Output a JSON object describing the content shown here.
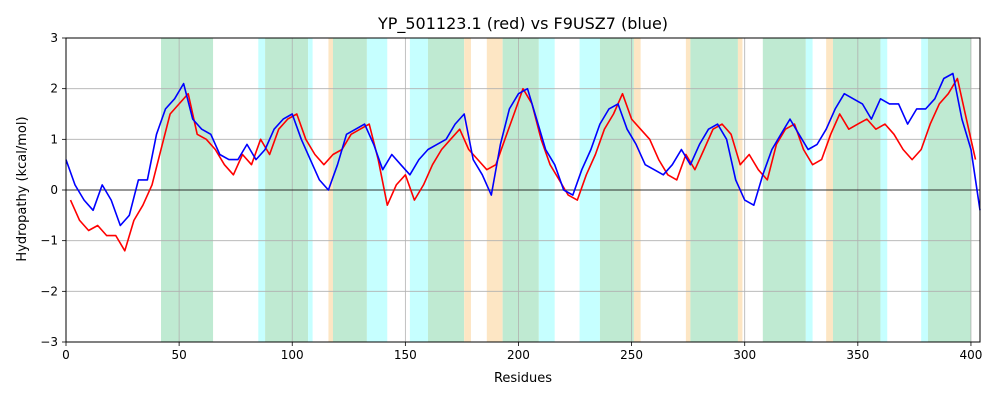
{
  "chart_data": {
    "type": "line",
    "title": "YP_501123.1 (red) vs F9USZ7 (blue)",
    "xlabel": "Residues",
    "ylabel": "Hydropathy (kcal/mol)",
    "xlim": [
      0,
      404
    ],
    "ylim": [
      -3,
      3
    ],
    "x_ticks": [
      0,
      50,
      100,
      150,
      200,
      250,
      300,
      350,
      400
    ],
    "y_ticks": [
      -3,
      -2,
      -1,
      0,
      1,
      2,
      3
    ],
    "grid": true,
    "zero_line": true,
    "band_colors": {
      "green": "#bfead2",
      "cyan": "#c6ffff",
      "orange": "#fde6c4"
    },
    "regions": [
      {
        "type": "green",
        "start": 42,
        "end": 65
      },
      {
        "type": "cyan",
        "start": 85,
        "end": 88
      },
      {
        "type": "green",
        "start": 88,
        "end": 107
      },
      {
        "type": "cyan",
        "start": 107,
        "end": 109
      },
      {
        "type": "orange",
        "start": 116,
        "end": 118
      },
      {
        "type": "green",
        "start": 118,
        "end": 133
      },
      {
        "type": "cyan",
        "start": 133,
        "end": 142
      },
      {
        "type": "cyan",
        "start": 152,
        "end": 160
      },
      {
        "type": "green",
        "start": 160,
        "end": 176
      },
      {
        "type": "orange",
        "start": 176,
        "end": 179
      },
      {
        "type": "orange",
        "start": 186,
        "end": 193
      },
      {
        "type": "green",
        "start": 193,
        "end": 209
      },
      {
        "type": "cyan",
        "start": 209,
        "end": 216
      },
      {
        "type": "cyan",
        "start": 227,
        "end": 236
      },
      {
        "type": "green",
        "start": 236,
        "end": 251
      },
      {
        "type": "orange",
        "start": 251,
        "end": 254
      },
      {
        "type": "orange",
        "start": 274,
        "end": 276
      },
      {
        "type": "green",
        "start": 276,
        "end": 297
      },
      {
        "type": "orange",
        "start": 297,
        "end": 299
      },
      {
        "type": "green",
        "start": 308,
        "end": 327
      },
      {
        "type": "cyan",
        "start": 327,
        "end": 330
      },
      {
        "type": "orange",
        "start": 336,
        "end": 339
      },
      {
        "type": "green",
        "start": 339,
        "end": 360
      },
      {
        "type": "cyan",
        "start": 360,
        "end": 363
      },
      {
        "type": "cyan",
        "start": 378,
        "end": 381
      },
      {
        "type": "green",
        "start": 381,
        "end": 400
      }
    ],
    "series": [
      {
        "color": "#ff0000",
        "x": [
          2,
          6,
          10,
          14,
          18,
          22,
          26,
          30,
          34,
          38,
          42,
          46,
          50,
          54,
          58,
          62,
          66,
          70,
          74,
          78,
          82,
          86,
          90,
          94,
          98,
          102,
          106,
          110,
          114,
          118,
          122,
          126,
          130,
          134,
          138,
          142,
          146,
          150,
          154,
          158,
          162,
          166,
          170,
          174,
          178,
          182,
          186,
          190,
          194,
          198,
          202,
          206,
          210,
          214,
          218,
          222,
          226,
          230,
          234,
          238,
          242,
          246,
          250,
          254,
          258,
          262,
          266,
          270,
          274,
          278,
          282,
          286,
          290,
          294,
          298,
          302,
          306,
          310,
          314,
          318,
          322,
          326,
          330,
          334,
          338,
          342,
          346,
          350,
          354,
          358,
          362,
          366,
          370,
          374,
          378,
          382,
          386,
          390,
          394,
          398,
          402
        ],
        "y": [
          -0.2,
          -0.6,
          -0.8,
          -0.7,
          -0.9,
          -0.9,
          -1.2,
          -0.6,
          -0.3,
          0.1,
          0.8,
          1.5,
          1.7,
          1.9,
          1.1,
          1.0,
          0.8,
          0.5,
          0.3,
          0.7,
          0.5,
          1.0,
          0.7,
          1.2,
          1.4,
          1.5,
          1.0,
          0.7,
          0.5,
          0.7,
          0.8,
          1.1,
          1.2,
          1.3,
          0.6,
          -0.3,
          0.1,
          0.3,
          -0.2,
          0.1,
          0.5,
          0.8,
          1.0,
          1.2,
          0.8,
          0.6,
          0.4,
          0.5,
          1.0,
          1.5,
          2.0,
          1.7,
          1.0,
          0.5,
          0.2,
          -0.1,
          -0.2,
          0.3,
          0.7,
          1.2,
          1.5,
          1.9,
          1.4,
          1.2,
          1.0,
          0.6,
          0.3,
          0.2,
          0.7,
          0.4,
          0.8,
          1.2,
          1.3,
          1.1,
          0.5,
          0.7,
          0.4,
          0.2,
          0.9,
          1.2,
          1.3,
          0.8,
          0.5,
          0.6,
          1.1,
          1.5,
          1.2,
          1.3,
          1.4,
          1.2,
          1.3,
          1.1,
          0.8,
          0.6,
          0.8,
          1.3,
          1.7,
          1.9,
          2.2,
          1.4,
          0.6
        ]
      },
      {
        "color": "#0000ff",
        "x": [
          0,
          4,
          8,
          12,
          16,
          20,
          24,
          28,
          32,
          36,
          40,
          44,
          48,
          52,
          56,
          60,
          64,
          68,
          72,
          76,
          80,
          84,
          88,
          92,
          96,
          100,
          104,
          108,
          112,
          116,
          120,
          124,
          128,
          132,
          136,
          140,
          144,
          148,
          152,
          156,
          160,
          164,
          168,
          172,
          176,
          180,
          184,
          188,
          192,
          196,
          200,
          204,
          208,
          212,
          216,
          220,
          224,
          228,
          232,
          236,
          240,
          244,
          248,
          252,
          256,
          260,
          264,
          268,
          272,
          276,
          280,
          284,
          288,
          292,
          296,
          300,
          304,
          308,
          312,
          316,
          320,
          324,
          328,
          332,
          336,
          340,
          344,
          348,
          352,
          356,
          360,
          364,
          368,
          372,
          376,
          380,
          384,
          388,
          392,
          396,
          400,
          404
        ],
        "y": [
          0.6,
          0.1,
          -0.2,
          -0.4,
          0.1,
          -0.2,
          -0.7,
          -0.5,
          0.2,
          0.2,
          1.1,
          1.6,
          1.8,
          2.1,
          1.4,
          1.2,
          1.1,
          0.7,
          0.6,
          0.6,
          0.9,
          0.6,
          0.8,
          1.2,
          1.4,
          1.5,
          1.0,
          0.6,
          0.2,
          0.0,
          0.5,
          1.1,
          1.2,
          1.3,
          0.9,
          0.4,
          0.7,
          0.5,
          0.3,
          0.6,
          0.8,
          0.9,
          1.0,
          1.3,
          1.5,
          0.6,
          0.3,
          -0.1,
          0.9,
          1.6,
          1.9,
          2.0,
          1.4,
          0.8,
          0.5,
          0.0,
          -0.1,
          0.4,
          0.8,
          1.3,
          1.6,
          1.7,
          1.2,
          0.9,
          0.5,
          0.4,
          0.3,
          0.5,
          0.8,
          0.5,
          0.9,
          1.2,
          1.3,
          1.0,
          0.2,
          -0.2,
          -0.3,
          0.3,
          0.8,
          1.1,
          1.4,
          1.1,
          0.8,
          0.9,
          1.2,
          1.6,
          1.9,
          1.8,
          1.7,
          1.4,
          1.8,
          1.7,
          1.7,
          1.3,
          1.6,
          1.6,
          1.8,
          2.2,
          2.3,
          1.4,
          0.8,
          -0.4
        ]
      }
    ]
  }
}
